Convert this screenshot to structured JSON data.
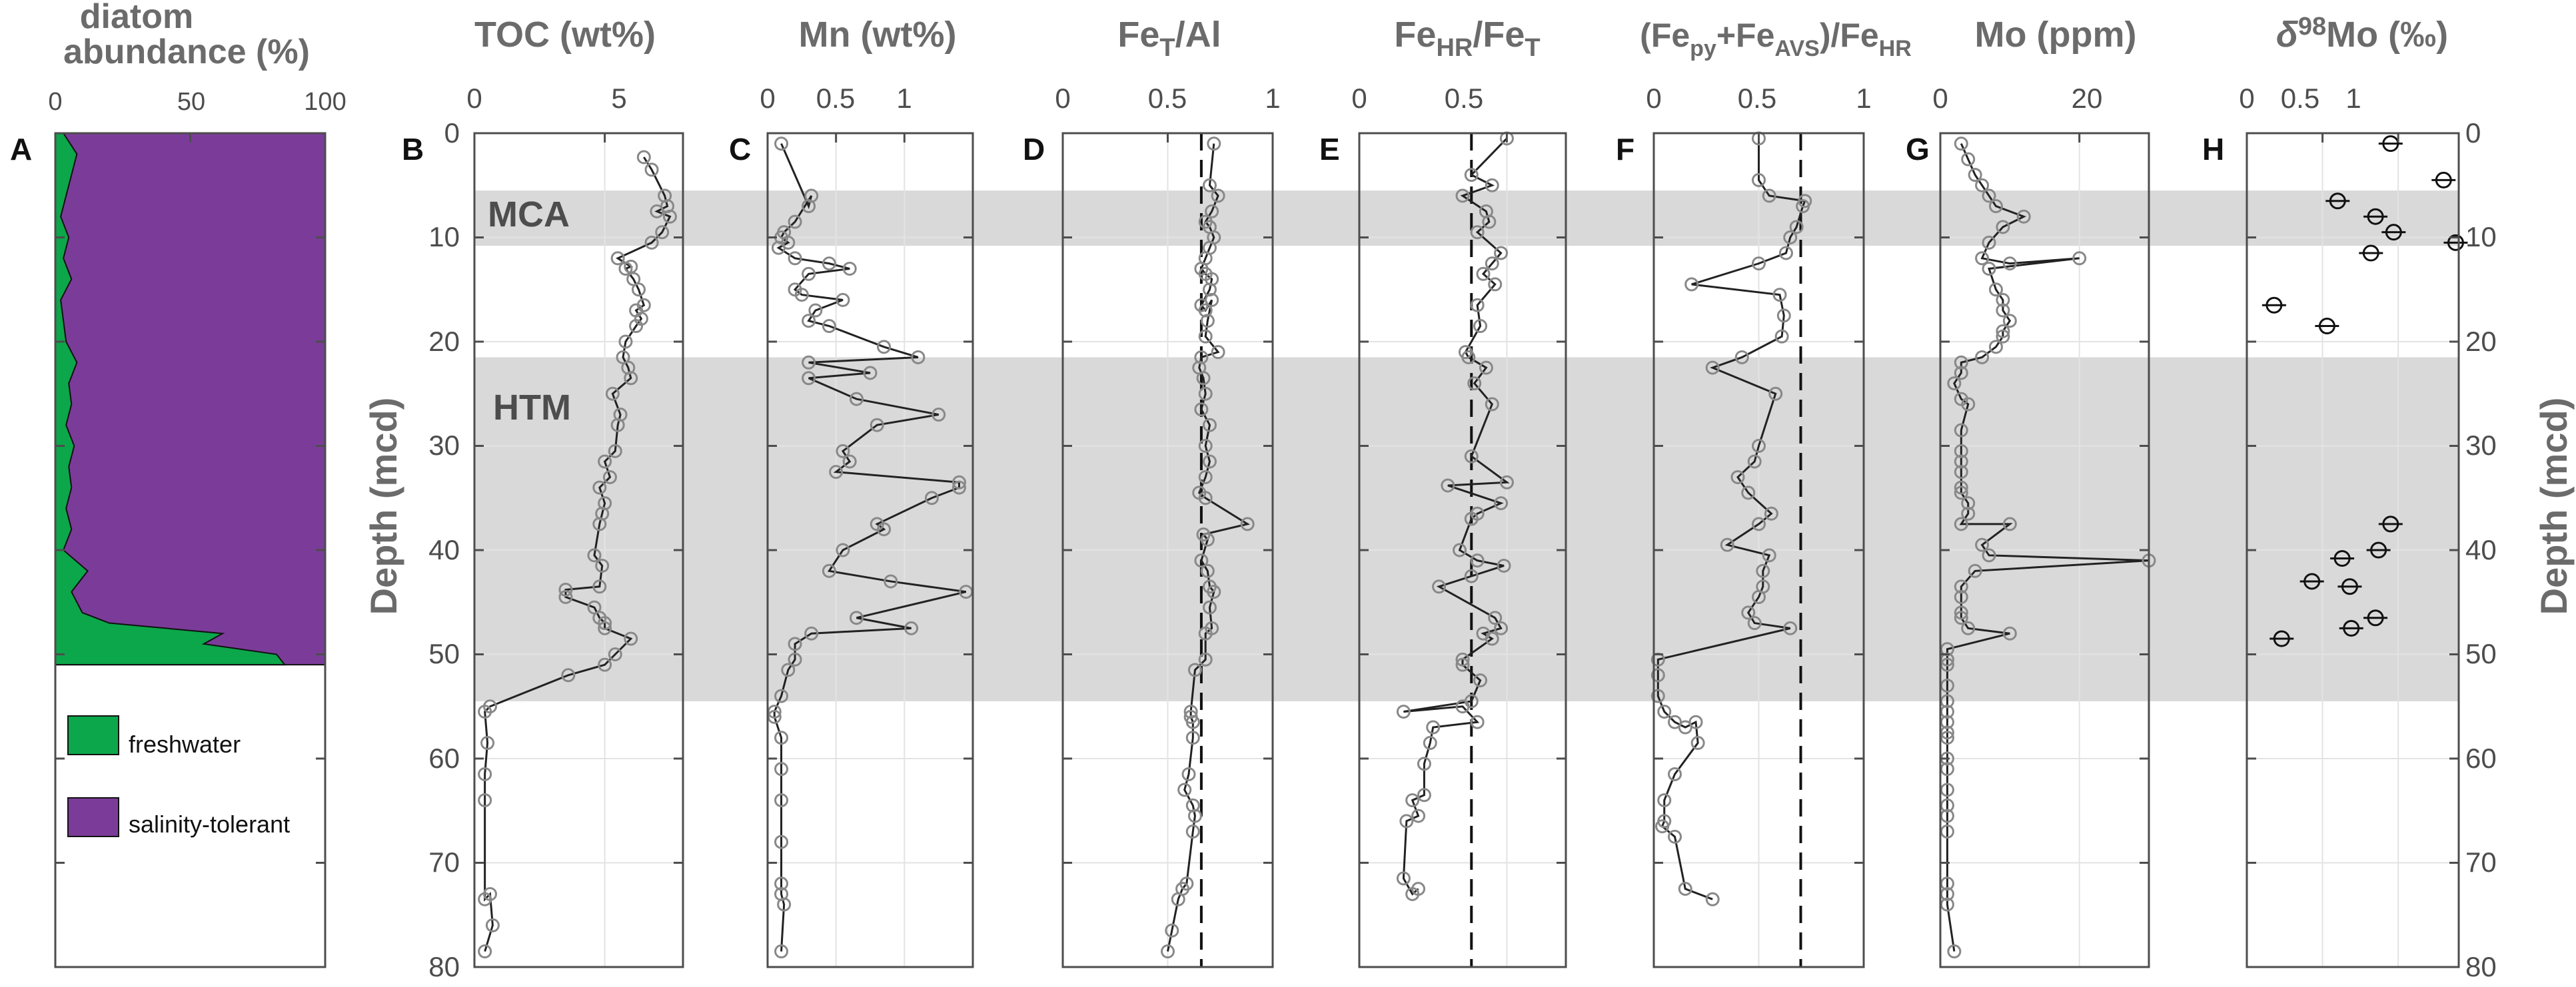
{
  "colors": {
    "freshwater": "#0BA74A",
    "salinity_tolerant": "#7B3C99",
    "band": "#d9d9d9",
    "axis": "#4d4d4d",
    "grid": "#e3e3e3",
    "marker": "#888888",
    "line": "#222222"
  },
  "depth_axis": {
    "label": "Depth (mcd)",
    "ticks": [
      0,
      10,
      20,
      30,
      40,
      50,
      60,
      70,
      80
    ],
    "ylim": [
      0,
      80
    ]
  },
  "bands": [
    {
      "label": "MCA",
      "from": 5.5,
      "to": 10.8
    },
    {
      "label": "HTM",
      "from": 21.5,
      "to": 54.5
    }
  ],
  "legend": {
    "freshwater": "freshwater",
    "salinity_tolerant": "salinity-tolerant"
  },
  "chart_data": [
    {
      "id": "A",
      "type": "area",
      "title_lines": [
        "diatom",
        "abundance (%)"
      ],
      "xlim": [
        0,
        100
      ],
      "xticks": [
        0,
        50,
        100
      ],
      "freshwater_series": {
        "name": "freshwater",
        "depth": [
          0,
          2,
          4,
          6,
          8,
          10,
          12,
          14,
          16,
          18,
          20,
          22,
          24,
          26,
          28,
          30,
          32,
          34,
          36,
          38,
          40,
          42,
          44,
          46,
          47,
          48,
          49,
          50,
          51
        ],
        "values": [
          3,
          8,
          6,
          4,
          2,
          5,
          3,
          6,
          2,
          3,
          4,
          8,
          5,
          6,
          4,
          7,
          5,
          6,
          4,
          6,
          3,
          12,
          6,
          10,
          20,
          62,
          55,
          82,
          85
        ]
      }
    },
    {
      "id": "B",
      "type": "line",
      "title": "TOC (wt%)",
      "xlim": [
        0,
        8
      ],
      "xticks": [
        0,
        5
      ],
      "x": [
        6.5,
        6.8,
        7.3,
        7.4,
        7.0,
        7.5,
        7.2,
        6.8,
        5.5,
        6.0,
        5.8,
        6.1,
        6.3,
        6.5,
        6.2,
        6.4,
        6.2,
        5.8,
        5.7,
        5.9,
        6.0,
        5.3,
        5.6,
        5.5,
        5.4,
        5.0,
        5.2,
        4.8,
        5.0,
        4.9,
        4.8,
        4.6,
        4.9,
        4.8,
        3.5,
        3.5,
        4.6,
        4.8,
        5.0,
        5.0,
        6.0,
        5.4,
        5.0,
        3.6,
        0.6,
        0.4,
        0.5,
        0.4,
        0.4,
        0.4,
        0.6,
        0.7,
        0.4
      ],
      "depth": [
        2.3,
        3.5,
        6.0,
        7.0,
        7.5,
        8.0,
        9.5,
        10.5,
        12.0,
        12.8,
        13.0,
        14.0,
        15.0,
        16.5,
        17.0,
        17.8,
        18.5,
        20.0,
        21.5,
        22.5,
        23.5,
        25.0,
        27.0,
        28.0,
        30.5,
        31.5,
        33.0,
        34.0,
        35.5,
        36.5,
        37.5,
        40.5,
        41.5,
        43.5,
        43.8,
        44.5,
        45.5,
        46.5,
        47.0,
        47.5,
        48.5,
        50.0,
        51.0,
        52.0,
        55.0,
        55.5,
        58.5,
        61.5,
        64.0,
        73.5,
        73.0,
        76.0,
        78.5
      ]
    },
    {
      "id": "C",
      "type": "line",
      "title": "Mn (wt%)",
      "xlim": [
        0,
        1.5
      ],
      "xticks": [
        0,
        0.5,
        1
      ],
      "xticklabels": [
        "0",
        "0.5",
        "1"
      ],
      "x": [
        0.1,
        0.3,
        0.32,
        0.2,
        0.12,
        0.1,
        0.15,
        0.08,
        0.2,
        0.45,
        0.6,
        0.3,
        0.2,
        0.25,
        0.55,
        0.35,
        0.3,
        0.45,
        0.85,
        1.1,
        0.3,
        0.75,
        0.3,
        0.65,
        1.25,
        0.8,
        0.55,
        0.6,
        0.5,
        1.4,
        1.4,
        1.2,
        0.8,
        0.85,
        0.55,
        0.45,
        0.9,
        1.45,
        0.65,
        1.05,
        0.32,
        0.2,
        0.2,
        0.15,
        0.1,
        0.05,
        0.05,
        0.1,
        0.1,
        0.1,
        0.1,
        0.1,
        0.1,
        0.12,
        0.1
      ],
      "depth": [
        1.0,
        7.0,
        6.0,
        8.5,
        9.5,
        10.0,
        10.5,
        11.0,
        12.0,
        12.5,
        13.0,
        13.5,
        15.0,
        15.5,
        16.0,
        17.0,
        18.0,
        18.5,
        20.5,
        21.5,
        22.0,
        23.0,
        23.5,
        25.5,
        27.0,
        28.0,
        30.5,
        31.5,
        32.5,
        33.5,
        34.0,
        35.0,
        37.5,
        38.0,
        40.0,
        42.0,
        43.0,
        44.0,
        46.5,
        47.5,
        48.0,
        49.0,
        50.5,
        51.5,
        54.0,
        55.5,
        56.0,
        58.0,
        61.0,
        64.0,
        68.0,
        72.0,
        73.0,
        74.0,
        78.5
      ]
    },
    {
      "id": "D",
      "type": "line",
      "title": "Fe_T/Al",
      "title_sub": "T",
      "xlim": [
        0,
        1
      ],
      "xticks": [
        0,
        0.5,
        1
      ],
      "xticklabels": [
        "0",
        "0.5",
        "1"
      ],
      "ref": 0.66,
      "x": [
        0.72,
        0.7,
        0.74,
        0.71,
        0.68,
        0.7,
        0.72,
        0.7,
        0.68,
        0.66,
        0.68,
        0.71,
        0.7,
        0.66,
        0.68,
        0.71,
        0.69,
        0.68,
        0.74,
        0.66,
        0.65,
        0.67,
        0.68,
        0.66,
        0.7,
        0.68,
        0.7,
        0.68,
        0.65,
        0.68,
        0.88,
        0.67,
        0.69,
        0.66,
        0.69,
        0.7,
        0.72,
        0.7,
        0.71,
        0.68,
        0.68,
        0.63,
        0.61,
        0.61,
        0.62,
        0.62,
        0.6,
        0.58,
        0.62,
        0.63,
        0.62,
        0.59,
        0.57,
        0.55,
        0.52,
        0.5
      ],
      "depth": [
        1.0,
        5.0,
        6.0,
        7.5,
        8.5,
        9.0,
        10.0,
        11.0,
        12.0,
        13.0,
        13.5,
        14.0,
        15.0,
        16.5,
        17.0,
        16.0,
        18.0,
        19.5,
        21.0,
        21.5,
        22.5,
        23.5,
        25.0,
        26.5,
        28.0,
        30.0,
        31.5,
        33.0,
        34.5,
        35.0,
        37.5,
        38.5,
        39.0,
        41.0,
        42.0,
        43.5,
        44.0,
        45.5,
        47.5,
        48.0,
        50.5,
        51.5,
        55.5,
        56.0,
        56.5,
        58.0,
        61.5,
        63.0,
        64.5,
        65.5,
        67.0,
        72.0,
        72.5,
        73.5,
        76.5,
        78.5
      ]
    },
    {
      "id": "E",
      "type": "line",
      "title": "Fe_HR/Fe_T",
      "xlim": [
        0,
        0.7
      ],
      "xticks": [
        0,
        0.5
      ],
      "xticklabels": [
        "0",
        "0.5"
      ],
      "ref": 0.38,
      "x": [
        0.5,
        0.38,
        0.45,
        0.35,
        0.43,
        0.44,
        0.4,
        0.48,
        0.45,
        0.42,
        0.46,
        0.4,
        0.41,
        0.36,
        0.37,
        0.43,
        0.39,
        0.45,
        0.38,
        0.5,
        0.3,
        0.48,
        0.4,
        0.38,
        0.34,
        0.4,
        0.49,
        0.38,
        0.27,
        0.46,
        0.48,
        0.42,
        0.45,
        0.35,
        0.35,
        0.41,
        0.38,
        0.15,
        0.35,
        0.4,
        0.25,
        0.24,
        0.22,
        0.22,
        0.18,
        0.2,
        0.16,
        0.15,
        0.18,
        0.2
      ],
      "depth": [
        0.5,
        4.0,
        5.0,
        6.0,
        7.5,
        8.5,
        9.5,
        11.5,
        12.5,
        13.5,
        14.5,
        16.5,
        18.5,
        21.0,
        21.5,
        22.5,
        24.0,
        26.0,
        31.0,
        33.5,
        33.8,
        35.5,
        36.5,
        37.0,
        40.0,
        41.0,
        41.5,
        42.5,
        43.5,
        46.5,
        47.5,
        48.0,
        48.5,
        50.5,
        51.0,
        52.5,
        54.5,
        55.5,
        55.0,
        56.5,
        57.0,
        58.5,
        60.5,
        63.5,
        64.0,
        65.5,
        66.0,
        71.5,
        73.0,
        72.5
      ]
    },
    {
      "id": "F",
      "type": "line",
      "title": "(Fe_py+Fe_AVS)/Fe_HR",
      "xlim": [
        0,
        1
      ],
      "xticks": [
        0,
        0.5,
        1
      ],
      "xticklabels": [
        "0",
        "0.5",
        "1"
      ],
      "ref": 0.7,
      "x": [
        0.5,
        0.5,
        0.55,
        0.72,
        0.71,
        0.68,
        0.65,
        0.63,
        0.5,
        0.18,
        0.6,
        0.62,
        0.61,
        0.42,
        0.28,
        0.58,
        0.5,
        0.48,
        0.4,
        0.45,
        0.56,
        0.5,
        0.35,
        0.55,
        0.52,
        0.52,
        0.5,
        0.45,
        0.48,
        0.65,
        0.02,
        0.02,
        0.02,
        0.05,
        0.1,
        0.15,
        0.2,
        0.21,
        0.1,
        0.05,
        0.05,
        0.04,
        0.1,
        0.15,
        0.28
      ],
      "depth": [
        0.5,
        4.5,
        6.0,
        6.5,
        7.0,
        9.0,
        10.0,
        11.5,
        12.5,
        14.5,
        15.5,
        17.5,
        19.5,
        21.5,
        22.5,
        25.0,
        30.0,
        31.5,
        33.0,
        34.5,
        36.5,
        37.5,
        39.5,
        40.5,
        42.0,
        43.5,
        44.5,
        46.0,
        47.0,
        47.5,
        50.5,
        52.0,
        54.0,
        55.5,
        56.5,
        57.0,
        56.5,
        58.5,
        61.5,
        64.0,
        66.0,
        66.5,
        67.5,
        72.5,
        73.5
      ]
    },
    {
      "id": "G",
      "type": "line",
      "title": "Mo (ppm)",
      "xlim": [
        0,
        30
      ],
      "xticks": [
        0,
        20
      ],
      "x": [
        3,
        4,
        5,
        6,
        7,
        8,
        12,
        9,
        7,
        6,
        10,
        20,
        7,
        8,
        9,
        9,
        10,
        9,
        9,
        8,
        6,
        3,
        3,
        2,
        3,
        4,
        3,
        3,
        3,
        3,
        3,
        3,
        4,
        4,
        3,
        10,
        6,
        7,
        30,
        5,
        3,
        3,
        3,
        3,
        4,
        10,
        1,
        1,
        1,
        1,
        1,
        1,
        1,
        1,
        1,
        1,
        1,
        1,
        1,
        1,
        1,
        1,
        1,
        1,
        2
      ],
      "depth": [
        1.0,
        2.5,
        4.0,
        5.0,
        6.0,
        7.0,
        8.0,
        9.0,
        10.5,
        12.0,
        12.5,
        12.0,
        13.0,
        15.0,
        16.0,
        17.0,
        18.0,
        19.0,
        19.5,
        20.5,
        21.5,
        22.0,
        23.0,
        24.0,
        25.5,
        26.0,
        28.5,
        30.5,
        31.5,
        32.5,
        34.0,
        34.5,
        35.5,
        36.5,
        37.5,
        37.5,
        39.5,
        40.5,
        41.0,
        42.0,
        43.5,
        44.5,
        46.0,
        46.5,
        47.5,
        48.0,
        49.5,
        50.5,
        51.0,
        53.0,
        54.5,
        55.5,
        56.5,
        57.5,
        58.0,
        60.0,
        61.0,
        63.0,
        64.5,
        65.5,
        67.0,
        72.0,
        73.0,
        74.0,
        78.5
      ]
    },
    {
      "id": "H",
      "type": "scatter",
      "title": "δ98Mo (‰)",
      "xlim": [
        0,
        1.4
      ],
      "xticks": [
        0,
        0.5,
        1
      ],
      "xticklabels": [
        "0",
        "0.5",
        "1"
      ],
      "x": [
        0.95,
        1.3,
        0.6,
        0.85,
        0.97,
        1.38,
        0.82,
        0.18,
        0.53,
        0.95,
        0.87,
        0.63,
        0.43,
        0.68,
        0.85,
        0.69,
        0.23
      ],
      "depth": [
        1.0,
        4.5,
        6.5,
        8.0,
        9.5,
        10.5,
        11.5,
        16.5,
        18.5,
        37.5,
        40.0,
        40.8,
        43.0,
        43.5,
        46.5,
        47.5,
        48.5
      ]
    }
  ],
  "ui": {
    "panel_A_ticks": [
      "0",
      "50",
      "100"
    ],
    "panel_B_ticks": [
      "0",
      "5"
    ],
    "panel_C_ticks": [
      "0",
      "0.5",
      "1"
    ],
    "panel_D_ticks": [
      "0",
      "0.5",
      "1"
    ],
    "panel_E_ticks": [
      "0",
      "0.5"
    ],
    "panel_F_ticks": [
      "0",
      "0.5",
      "1"
    ],
    "panel_G_ticks": [
      "0",
      "20"
    ],
    "panel_H_ticks": [
      "0",
      "0.5",
      "1"
    ],
    "depth_ticks": [
      "0",
      "10",
      "20",
      "30",
      "40",
      "50",
      "60",
      "70",
      "80"
    ],
    "letters": [
      "A",
      "B",
      "C",
      "D",
      "E",
      "F",
      "G",
      "H"
    ],
    "titles": {
      "A1": "diatom",
      "A2": "abundance (%)",
      "B": "TOC (wt%)",
      "C": "Mn (wt%)",
      "D_main": "Fe",
      "D_sub": "T",
      "D_tail": "/Al",
      "E_main": "Fe",
      "E_sub1": "HR",
      "E_mid": "/Fe",
      "E_sub2": "T",
      "F_a": "(Fe",
      "F_sub1": "py",
      "F_b": "+Fe",
      "F_sub2": "AVS",
      "F_c": ")/Fe",
      "F_sub3": "HR",
      "G": "Mo (ppm)",
      "H_delta": "δ",
      "H_sup": "98",
      "H_tail": "Mo (‰)"
    }
  }
}
